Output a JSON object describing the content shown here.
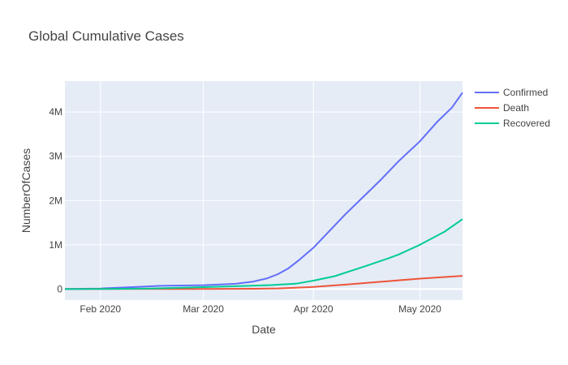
{
  "chart_data": {
    "type": "line",
    "title": "Global Cumulative Cases",
    "xlabel": "Date",
    "ylabel": "NumberOfCases",
    "x_ticks": [
      {
        "date": "2020-02-01",
        "label": "Feb 2020"
      },
      {
        "date": "2020-03-01",
        "label": "Mar 2020"
      },
      {
        "date": "2020-04-01",
        "label": "Apr 2020"
      },
      {
        "date": "2020-05-01",
        "label": "May 2020"
      }
    ],
    "y_ticks": [
      {
        "value": 0,
        "label": "0"
      },
      {
        "value": 1000000,
        "label": "1M"
      },
      {
        "value": 2000000,
        "label": "2M"
      },
      {
        "value": 3000000,
        "label": "3M"
      },
      {
        "value": 4000000,
        "label": "4M"
      }
    ],
    "xlim": [
      "2020-01-22",
      "2020-05-13"
    ],
    "ylim": [
      -250000,
      4700000
    ],
    "grid": true,
    "legend_position": "top-right",
    "series": [
      {
        "name": "Confirmed",
        "color": "#636efa",
        "points": [
          [
            "2020-01-22",
            555
          ],
          [
            "2020-02-01",
            12000
          ],
          [
            "2020-02-10",
            43000
          ],
          [
            "2020-02-18",
            73000
          ],
          [
            "2020-03-01",
            88000
          ],
          [
            "2020-03-10",
            119000
          ],
          [
            "2020-03-15",
            168000
          ],
          [
            "2020-03-19",
            243000
          ],
          [
            "2020-03-22",
            337000
          ],
          [
            "2020-03-25",
            470000
          ],
          [
            "2020-03-28",
            660000
          ],
          [
            "2020-04-01",
            935000
          ],
          [
            "2020-04-05",
            1270000
          ],
          [
            "2020-04-10",
            1690000
          ],
          [
            "2020-04-15",
            2080000
          ],
          [
            "2020-04-20",
            2470000
          ],
          [
            "2020-04-25",
            2890000
          ],
          [
            "2020-05-01",
            3340000
          ],
          [
            "2020-05-06",
            3790000
          ],
          [
            "2020-05-10",
            4100000
          ],
          [
            "2020-05-13",
            4440000
          ]
        ]
      },
      {
        "name": "Death",
        "color": "#ef553b",
        "points": [
          [
            "2020-01-22",
            17
          ],
          [
            "2020-02-01",
            259
          ],
          [
            "2020-02-15",
            1660
          ],
          [
            "2020-03-01",
            3000
          ],
          [
            "2020-03-15",
            6400
          ],
          [
            "2020-03-22",
            14600
          ],
          [
            "2020-04-01",
            47000
          ],
          [
            "2020-04-10",
            100000
          ],
          [
            "2020-04-20",
            165000
          ],
          [
            "2020-05-01",
            235000
          ],
          [
            "2020-05-13",
            298000
          ]
        ]
      },
      {
        "name": "Recovered",
        "color": "#00cc96",
        "points": [
          [
            "2020-01-22",
            28
          ],
          [
            "2020-02-01",
            300
          ],
          [
            "2020-02-15",
            10000
          ],
          [
            "2020-03-01",
            42700
          ],
          [
            "2020-03-10",
            64000
          ],
          [
            "2020-03-20",
            90000
          ],
          [
            "2020-03-27",
            120000
          ],
          [
            "2020-04-01",
            190000
          ],
          [
            "2020-04-07",
            290000
          ],
          [
            "2020-04-15",
            500000
          ],
          [
            "2020-04-22",
            690000
          ],
          [
            "2020-04-25",
            780000
          ],
          [
            "2020-05-01",
            1000000
          ],
          [
            "2020-05-08",
            1300000
          ],
          [
            "2020-05-13",
            1580000
          ]
        ]
      }
    ]
  }
}
